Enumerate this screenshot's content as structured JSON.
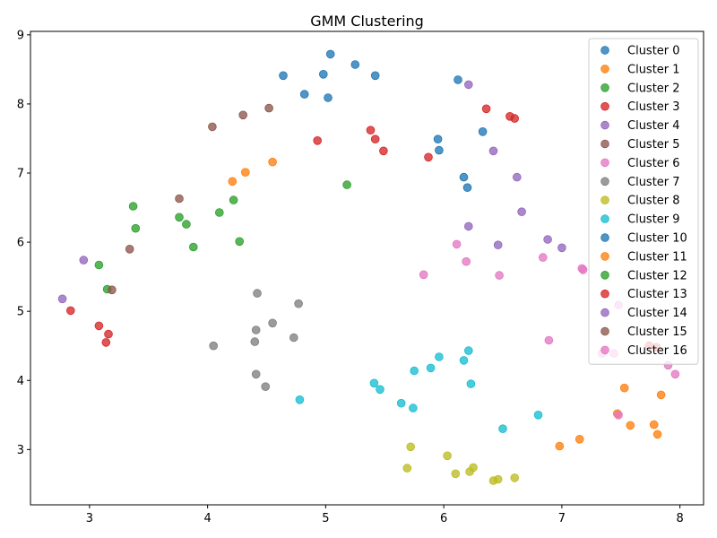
{
  "chart_data": {
    "type": "scatter",
    "title": "GMM Clustering",
    "xlabel": "",
    "ylabel": "",
    "xlim": [
      2.5,
      8.2
    ],
    "ylim": [
      2.2,
      9.05
    ],
    "xticks": [
      3,
      4,
      5,
      6,
      7,
      8
    ],
    "yticks": [
      3,
      4,
      5,
      6,
      7,
      8,
      9
    ],
    "grid": false,
    "legend_position": "top-right",
    "series": [
      {
        "name": "Cluster 0",
        "color": "#1f77b4",
        "points": [
          [
            5.04,
            8.72
          ],
          [
            5.25,
            8.57
          ],
          [
            4.98,
            8.43
          ],
          [
            5.42,
            8.41
          ],
          [
            4.64,
            8.41
          ],
          [
            4.82,
            8.14
          ],
          [
            5.02,
            8.09
          ],
          [
            6.12,
            8.35
          ],
          [
            6.33,
            7.6
          ],
          [
            5.95,
            7.49
          ],
          [
            5.96,
            7.33
          ],
          [
            6.17,
            6.94
          ],
          [
            6.2,
            6.79
          ]
        ]
      },
      {
        "name": "Cluster 1",
        "color": "#ff7f0e",
        "points": [
          [
            4.55,
            7.16
          ],
          [
            4.32,
            7.01
          ],
          [
            4.21,
            6.88
          ],
          [
            7.53,
            3.89
          ],
          [
            7.84,
            3.79
          ],
          [
            7.47,
            3.52
          ],
          [
            7.58,
            3.35
          ],
          [
            7.78,
            3.36
          ],
          [
            7.81,
            3.22
          ],
          [
            7.15,
            3.15
          ],
          [
            6.98,
            3.05
          ]
        ]
      },
      {
        "name": "Cluster 2",
        "color": "#2ca02c",
        "points": [
          [
            5.18,
            6.83
          ],
          [
            4.22,
            6.61
          ],
          [
            3.37,
            6.52
          ],
          [
            4.1,
            6.43
          ],
          [
            3.76,
            6.36
          ],
          [
            3.82,
            6.26
          ],
          [
            3.39,
            6.2
          ],
          [
            4.27,
            6.01
          ],
          [
            3.88,
            5.93
          ],
          [
            3.08,
            5.67
          ],
          [
            3.15,
            5.32
          ]
        ]
      },
      {
        "name": "Cluster 3",
        "color": "#d62728",
        "points": [
          [
            6.36,
            7.93
          ],
          [
            6.56,
            7.82
          ],
          [
            6.6,
            7.79
          ],
          [
            5.38,
            7.62
          ],
          [
            5.42,
            7.49
          ],
          [
            4.93,
            7.47
          ],
          [
            5.49,
            7.32
          ],
          [
            5.87,
            7.23
          ],
          [
            2.84,
            5.01
          ],
          [
            3.08,
            4.79
          ],
          [
            3.16,
            4.67
          ],
          [
            3.14,
            4.55
          ]
        ]
      },
      {
        "name": "Cluster 4",
        "color": "#9467bd",
        "points": [
          [
            6.21,
            8.28
          ],
          [
            6.42,
            7.32
          ],
          [
            6.62,
            6.94
          ],
          [
            6.66,
            6.44
          ],
          [
            6.21,
            6.23
          ],
          [
            6.88,
            6.04
          ],
          [
            6.46,
            5.96
          ],
          [
            7.0,
            5.92
          ],
          [
            2.95,
            5.74
          ],
          [
            2.77,
            5.18
          ]
        ]
      },
      {
        "name": "Cluster 5",
        "color": "#8c564b",
        "points": [
          [
            4.52,
            7.94
          ],
          [
            4.3,
            7.84
          ],
          [
            4.04,
            7.67
          ],
          [
            3.76,
            6.63
          ],
          [
            3.34,
            5.9
          ],
          [
            3.19,
            5.31
          ]
        ]
      },
      {
        "name": "Cluster 6",
        "color": "#e377c2",
        "points": [
          [
            6.11,
            5.97
          ],
          [
            6.19,
            5.72
          ],
          [
            6.84,
            5.78
          ],
          [
            7.17,
            5.62
          ],
          [
            7.18,
            5.6
          ],
          [
            5.83,
            5.53
          ],
          [
            6.47,
            5.52
          ],
          [
            7.48,
            5.09
          ],
          [
            6.89,
            4.58
          ],
          [
            7.34,
            4.39
          ],
          [
            7.44,
            4.39
          ],
          [
            7.9,
            4.22
          ],
          [
            7.96,
            4.09
          ],
          [
            7.48,
            3.5
          ]
        ]
      },
      {
        "name": "Cluster 7",
        "color": "#7f7f7f",
        "points": [
          [
            4.42,
            5.26
          ],
          [
            4.77,
            5.11
          ],
          [
            4.55,
            4.83
          ],
          [
            4.41,
            4.73
          ],
          [
            4.73,
            4.62
          ],
          [
            4.4,
            4.56
          ],
          [
            4.05,
            4.5
          ],
          [
            4.41,
            4.09
          ],
          [
            4.49,
            3.91
          ]
        ]
      },
      {
        "name": "Cluster 8",
        "color": "#bcbd22",
        "points": [
          [
            5.72,
            3.04
          ],
          [
            6.03,
            2.91
          ],
          [
            5.69,
            2.73
          ],
          [
            6.25,
            2.74
          ],
          [
            6.22,
            2.68
          ],
          [
            6.1,
            2.65
          ],
          [
            6.46,
            2.57
          ],
          [
            6.42,
            2.55
          ],
          [
            6.6,
            2.59
          ]
        ]
      },
      {
        "name": "Cluster 9",
        "color": "#17becf",
        "points": [
          [
            6.21,
            4.43
          ],
          [
            5.96,
            4.34
          ],
          [
            6.17,
            4.29
          ],
          [
            5.89,
            4.18
          ],
          [
            5.75,
            4.14
          ],
          [
            5.41,
            3.96
          ],
          [
            6.23,
            3.95
          ],
          [
            5.46,
            3.87
          ],
          [
            4.78,
            3.72
          ],
          [
            5.64,
            3.67
          ],
          [
            5.74,
            3.6
          ],
          [
            6.8,
            3.5
          ],
          [
            6.5,
            3.3
          ]
        ]
      },
      {
        "name": "Cluster 10",
        "color": "#1f77b4",
        "points": []
      },
      {
        "name": "Cluster 11",
        "color": "#ff7f0e",
        "points": []
      },
      {
        "name": "Cluster 12",
        "color": "#2ca02c",
        "points": []
      },
      {
        "name": "Cluster 13",
        "color": "#d62728",
        "points": [
          [
            7.74,
            4.5
          ],
          [
            7.8,
            4.48
          ]
        ]
      },
      {
        "name": "Cluster 14",
        "color": "#9467bd",
        "points": []
      },
      {
        "name": "Cluster 15",
        "color": "#8c564b",
        "points": []
      },
      {
        "name": "Cluster 16",
        "color": "#e377c2",
        "points": []
      }
    ]
  }
}
